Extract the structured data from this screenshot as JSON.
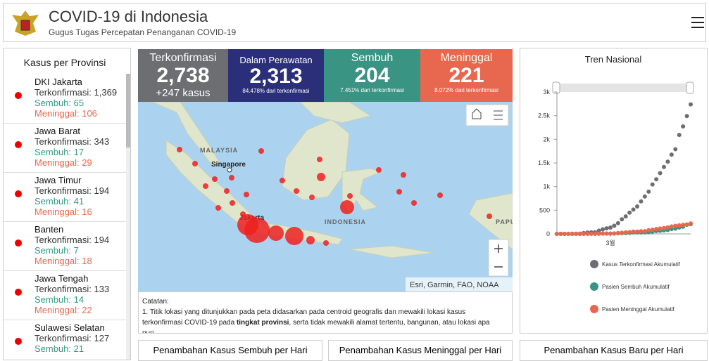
{
  "header": {
    "title": "COVID-19 di Indonesia",
    "subtitle": "Gugus Tugas Percepatan Penanganan COVID-19"
  },
  "provinces": {
    "title": "Kasus per Provinsi",
    "items": [
      {
        "name": "DKI Jakarta",
        "confirmed": "Terkonfirmasi: 1,369",
        "recovered": "Sembuh: 65",
        "deaths": "Meninggal: 106"
      },
      {
        "name": "Jawa Barat",
        "confirmed": "Terkonfirmasi: 343",
        "recovered": "Sembuh: 17",
        "deaths": "Meninggal: 29"
      },
      {
        "name": "Jawa Timur",
        "confirmed": "Terkonfirmasi: 194",
        "recovered": "Sembuh: 41",
        "deaths": "Meninggal: 16"
      },
      {
        "name": "Banten",
        "confirmed": "Terkonfirmasi: 194",
        "recovered": "Sembuh: 7",
        "deaths": "Meninggal: 18"
      },
      {
        "name": "Jawa Tengah",
        "confirmed": "Terkonfirmasi: 133",
        "recovered": "Sembuh: 14",
        "deaths": "Meninggal: 22"
      },
      {
        "name": "Sulawesi Selatan",
        "confirmed": "Terkonfirmasi: 127",
        "recovered": "Sembuh: 21"
      }
    ]
  },
  "stats": [
    {
      "label": "Terkonfirmasi",
      "value": "2,738",
      "sub": "+247 kasus"
    },
    {
      "label": "Dalam Perawatan",
      "value": "2,313",
      "sub": "84.478% dari terkonfirmasi"
    },
    {
      "label": "Sembuh",
      "value": "204",
      "sub": "7.451% dari terkonfirmasi"
    },
    {
      "label": "Meninggal",
      "value": "221",
      "sub": "8.072% dari terkonfirmasi"
    }
  ],
  "map": {
    "labels": [
      "MALAYSIA",
      "Singapore",
      "Jakarta",
      "INDONESIA",
      "PAPU"
    ],
    "attribution": "Esri, Garmin, FAO, NOAA"
  },
  "notes": {
    "title": "Catatan:",
    "text": [
      "1. Titik lokasi yang ditunjukkan pada peta didasarkan pada centroid geografis dan mewakili lokasi kasus terkonfirmasi COVID-19 pada ",
      "tingkat provinsi",
      ", serta tidak mewakili alamat tertentu, bangunan, atau lokasi apa pun."
    ]
  },
  "tabs": [
    "Penambahan Kasus Sembuh per Hari",
    "Penambahan Kasus Meninggal per Hari",
    "Penambahan Kasus Baru per Hari"
  ],
  "chart_data": {
    "type": "scatter",
    "title": "Tren Nasional",
    "categories": [
      null,
      null,
      null,
      null,
      null,
      null,
      null,
      null,
      null,
      null,
      null,
      null,
      null,
      null,
      "3월",
      null,
      null,
      null,
      null,
      null,
      null,
      null,
      null,
      null,
      null,
      null,
      null,
      null,
      null,
      null,
      null,
      null,
      null,
      null,
      null,
      null
    ],
    "ylim": [
      0,
      3000
    ],
    "yticks": [
      0,
      500,
      {
        "value": 1000,
        "label": "1k"
      },
      {
        "value": 1500,
        "label": "1.5k"
      },
      {
        "value": 2000,
        "label": "2k"
      },
      {
        "value": 2500,
        "label": "2.5k"
      },
      {
        "value": 3000,
        "label": "3k"
      }
    ],
    "series": [
      {
        "name": "Kasus Terkonfirmasi Akumulatif",
        "color": "#6d6e72",
        "values": [
          2,
          2,
          2,
          2,
          4,
          4,
          6,
          19,
          27,
          34,
          34,
          69,
          96,
          117,
          134,
          172,
          227,
          309,
          369,
          450,
          514,
          579,
          686,
          790,
          893,
          1046,
          1155,
          1285,
          1414,
          1528,
          1677,
          1790,
          2092,
          2273,
          2491,
          2738
        ]
      },
      {
        "name": "Pasien Sembuh Akumulatif",
        "color": "#3a9484",
        "values": [
          0,
          0,
          0,
          0,
          0,
          0,
          0,
          2,
          2,
          2,
          2,
          3,
          8,
          8,
          8,
          9,
          11,
          15,
          16,
          20,
          29,
          30,
          30,
          31,
          35,
          46,
          59,
          64,
          75,
          81,
          103,
          112,
          134,
          150,
          192,
          204
        ]
      },
      {
        "name": "Pasien Meninggal Akumulatif",
        "color": "#e8684f",
        "values": [
          0,
          0,
          0,
          0,
          0,
          0,
          0,
          0,
          1,
          1,
          1,
          4,
          5,
          5,
          5,
          5,
          19,
          25,
          32,
          38,
          48,
          49,
          55,
          58,
          78,
          87,
          102,
          114,
          122,
          136,
          157,
          170,
          181,
          191,
          198,
          221
        ]
      }
    ]
  }
}
